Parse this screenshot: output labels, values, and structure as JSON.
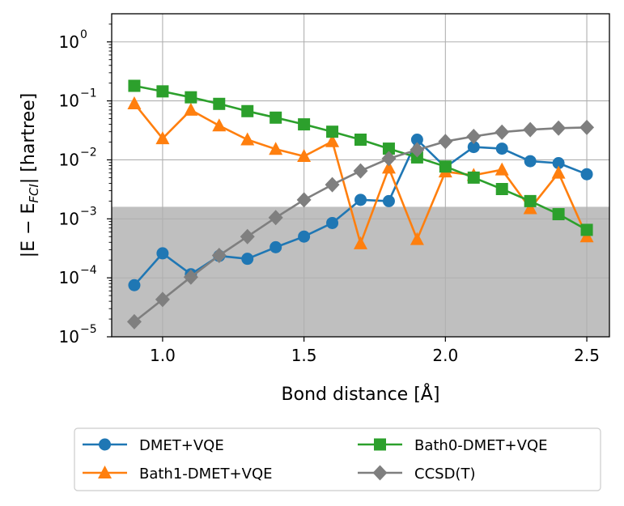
{
  "chart_data": {
    "type": "line",
    "xlabel": "Bond distance [Å]",
    "ylabel": "|E − E_FCI| [hartree]",
    "ylabel_main": "|E − E",
    "ylabel_sub": "FCI",
    "ylabel_tail": "| [hartree]",
    "xlim": [
      0.82,
      2.58
    ],
    "ylim": [
      1e-05,
      3
    ],
    "yscale": "log",
    "grid": true,
    "legend_position": "below",
    "x_ticks": [
      1.0,
      1.5,
      2.0,
      2.5
    ],
    "x_tick_labels": [
      "1.0",
      "1.5",
      "2.0",
      "2.5"
    ],
    "y_ticks": [
      1e-05,
      0.0001,
      0.001,
      0.01,
      0.1,
      1
    ],
    "y_tick_exponents": [
      "−5",
      "−4",
      "−3",
      "−2",
      "−1",
      "0"
    ],
    "y_tick_base": "10",
    "shaded_region": {
      "y_from": 1e-05,
      "y_to": 0.0016,
      "color": "#bfbfbf"
    },
    "x": [
      0.9,
      1.0,
      1.1,
      1.2,
      1.3,
      1.4,
      1.5,
      1.6,
      1.7,
      1.8,
      1.9,
      2.0,
      2.1,
      2.2,
      2.3,
      2.4,
      2.5
    ],
    "series": [
      {
        "name": "DMET+VQE",
        "color": "#1f77b4",
        "marker": "circle",
        "values": [
          7.5e-05,
          0.00026,
          0.000115,
          0.000235,
          0.00021,
          0.00033,
          0.0005,
          0.00085,
          0.0021,
          0.002,
          0.022,
          0.0075,
          0.0165,
          0.0155,
          0.0095,
          0.0088,
          0.0057
        ]
      },
      {
        "name": "Bath1-DMET+VQE",
        "color": "#ff7f0e",
        "marker": "triangle",
        "values": [
          0.09,
          0.023,
          0.07,
          0.038,
          0.022,
          0.0152,
          0.0115,
          0.0205,
          0.00038,
          0.0073,
          0.00045,
          0.0063,
          0.0055,
          0.0068,
          0.0015,
          0.006,
          0.0005
        ]
      },
      {
        "name": "Bath0-DMET+VQE",
        "color": "#2ca02c",
        "marker": "square",
        "values": [
          0.18,
          0.145,
          0.115,
          0.089,
          0.067,
          0.052,
          0.04,
          0.03,
          0.022,
          0.0155,
          0.011,
          0.0077,
          0.005,
          0.0032,
          0.002,
          0.0012,
          0.00065
        ]
      },
      {
        "name": "CCSD(T)",
        "color": "#7f7f7f",
        "marker": "diamond",
        "values": [
          1.8e-05,
          4.3e-05,
          0.000103,
          0.00024,
          0.0005,
          0.00105,
          0.0021,
          0.0038,
          0.0065,
          0.0105,
          0.0148,
          0.0205,
          0.025,
          0.0295,
          0.0325,
          0.0345,
          0.0355
        ]
      }
    ]
  }
}
